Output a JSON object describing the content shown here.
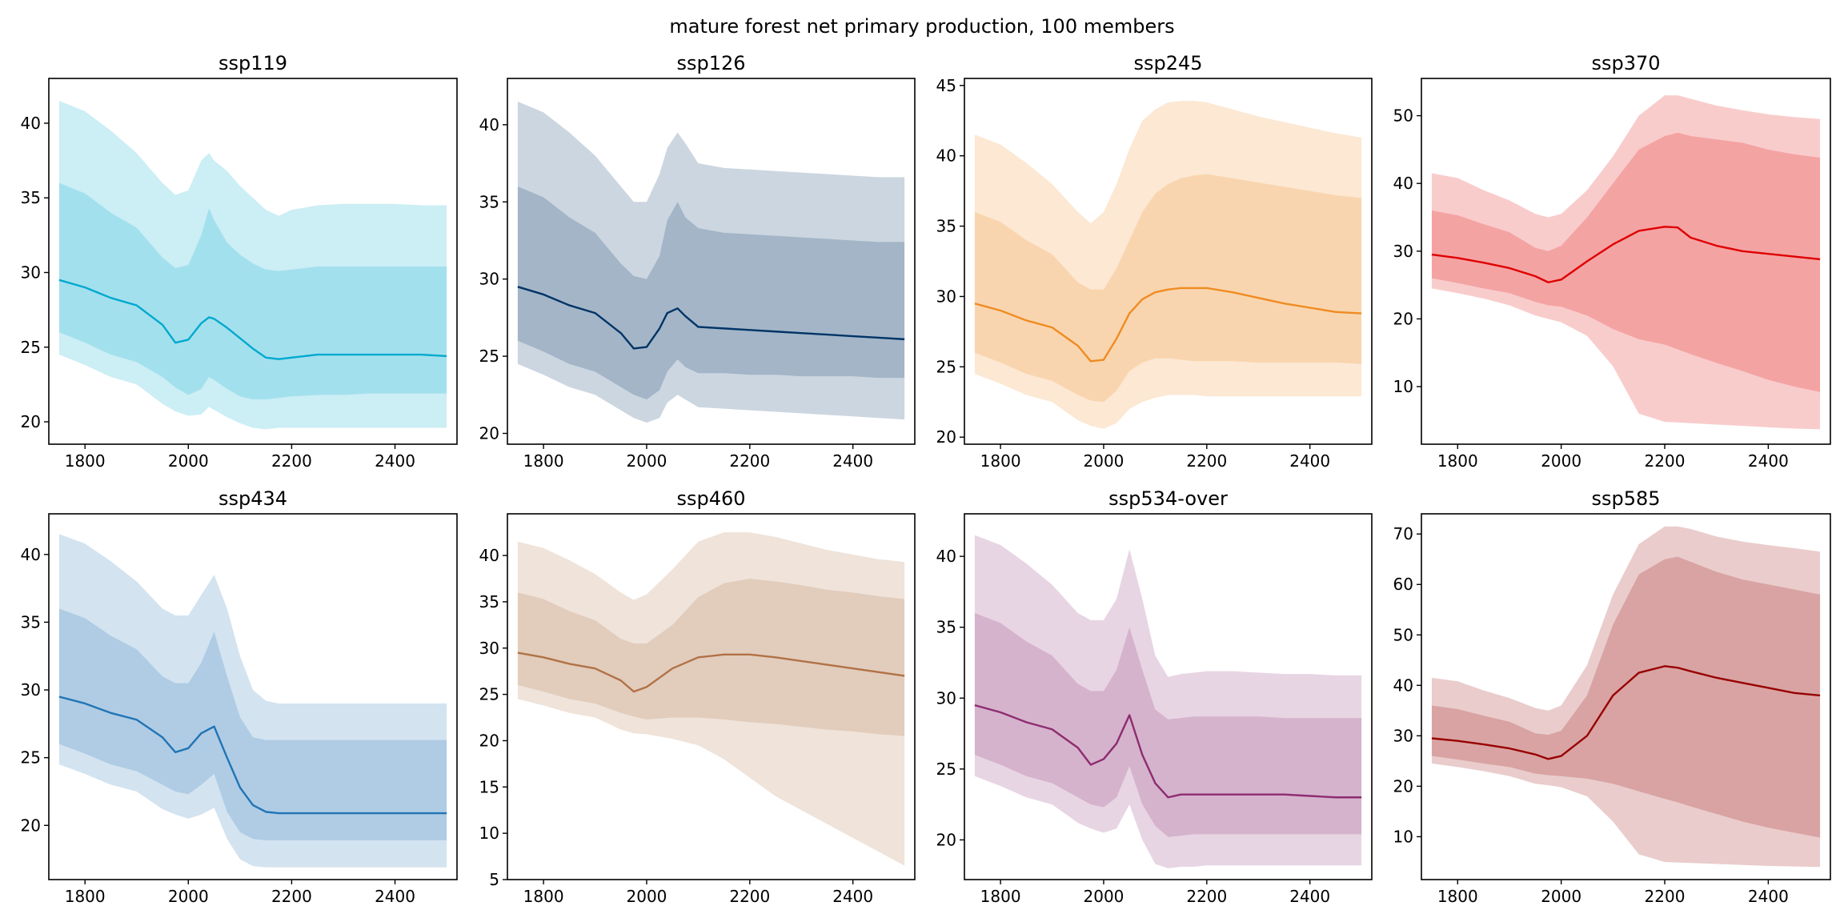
{
  "figure": {
    "suptitle": "mature forest net primary production, 100 members"
  },
  "chart_data": [
    {
      "type": "area",
      "title": "ssp119",
      "color": "#00a9cf",
      "xlim": [
        1730,
        2520
      ],
      "ylim": [
        18.5,
        43
      ],
      "xticks": [
        1800,
        2000,
        2200,
        2400
      ],
      "yticks": [
        20,
        25,
        30,
        35,
        40
      ],
      "x": [
        1750,
        1800,
        1850,
        1900,
        1950,
        1975,
        2000,
        2025,
        2040,
        2050,
        2075,
        2100,
        2125,
        2150,
        2175,
        2200,
        2250,
        2300,
        2350,
        2400,
        2450,
        2500
      ],
      "bands": {
        "outer_upper": [
          41.5,
          40.8,
          39.5,
          38.0,
          36.0,
          35.2,
          35.5,
          37.5,
          38.0,
          37.5,
          36.8,
          35.8,
          35.0,
          34.2,
          33.8,
          34.2,
          34.5,
          34.6,
          34.6,
          34.6,
          34.5,
          34.5
        ],
        "inner_upper": [
          36.0,
          35.3,
          34.0,
          33.0,
          31.0,
          30.3,
          30.5,
          32.5,
          34.3,
          33.5,
          32.0,
          31.2,
          30.6,
          30.2,
          30.1,
          30.2,
          30.4,
          30.4,
          30.4,
          30.4,
          30.4,
          30.4
        ],
        "median": [
          29.5,
          29.0,
          28.3,
          27.8,
          26.5,
          25.3,
          25.5,
          26.6,
          27.0,
          26.9,
          26.3,
          25.6,
          24.9,
          24.3,
          24.2,
          24.3,
          24.5,
          24.5,
          24.5,
          24.5,
          24.5,
          24.4
        ],
        "inner_lower": [
          26.0,
          25.3,
          24.5,
          24.0,
          23.0,
          22.3,
          21.8,
          22.2,
          23.0,
          22.8,
          22.2,
          21.7,
          21.5,
          21.5,
          21.6,
          21.7,
          21.8,
          21.8,
          21.9,
          21.9,
          21.9,
          21.9
        ],
        "outer_lower": [
          24.5,
          23.8,
          23.0,
          22.5,
          21.2,
          20.7,
          20.4,
          20.5,
          21.0,
          20.8,
          20.3,
          19.9,
          19.6,
          19.5,
          19.6,
          19.6,
          19.6,
          19.6,
          19.6,
          19.6,
          19.6,
          19.6
        ]
      }
    },
    {
      "type": "area",
      "title": "ssp126",
      "color": "#003466",
      "xlim": [
        1730,
        2520
      ],
      "ylim": [
        19.3,
        43
      ],
      "xticks": [
        1800,
        2000,
        2200,
        2400
      ],
      "yticks": [
        20,
        25,
        30,
        35,
        40
      ],
      "x": [
        1750,
        1800,
        1850,
        1900,
        1950,
        1975,
        2000,
        2025,
        2040,
        2060,
        2075,
        2100,
        2150,
        2200,
        2250,
        2300,
        2350,
        2400,
        2450,
        2500
      ],
      "bands": {
        "outer_upper": [
          41.5,
          40.8,
          39.5,
          38.0,
          36.0,
          35.0,
          35.0,
          36.8,
          38.5,
          39.5,
          38.8,
          37.5,
          37.2,
          37.1,
          37.0,
          36.9,
          36.8,
          36.7,
          36.6,
          36.6
        ],
        "inner_upper": [
          36.0,
          35.3,
          34.0,
          33.0,
          31.0,
          30.2,
          30.0,
          31.5,
          33.8,
          35.0,
          34.0,
          33.3,
          33.0,
          32.9,
          32.8,
          32.7,
          32.6,
          32.5,
          32.4,
          32.4
        ],
        "median": [
          29.5,
          29.0,
          28.3,
          27.8,
          26.5,
          25.5,
          25.6,
          26.8,
          27.8,
          28.1,
          27.6,
          26.9,
          26.8,
          26.7,
          26.6,
          26.5,
          26.4,
          26.3,
          26.2,
          26.1
        ],
        "inner_lower": [
          26.0,
          25.3,
          24.5,
          24.0,
          23.0,
          22.5,
          22.2,
          22.8,
          24.0,
          24.8,
          24.3,
          23.9,
          23.9,
          23.8,
          23.8,
          23.7,
          23.7,
          23.7,
          23.6,
          23.6
        ],
        "outer_lower": [
          24.5,
          23.8,
          23.0,
          22.5,
          21.5,
          21.0,
          20.7,
          21.0,
          22.0,
          22.5,
          22.2,
          21.7,
          21.6,
          21.5,
          21.4,
          21.3,
          21.2,
          21.1,
          21.0,
          20.9
        ]
      }
    },
    {
      "type": "area",
      "title": "ssp245",
      "color": "#ef8c22",
      "xlim": [
        1730,
        2520
      ],
      "ylim": [
        19.5,
        45.5
      ],
      "xticks": [
        1800,
        2000,
        2200,
        2400
      ],
      "yticks": [
        20,
        25,
        30,
        35,
        40,
        45
      ],
      "x": [
        1750,
        1800,
        1850,
        1900,
        1950,
        1975,
        2000,
        2025,
        2050,
        2075,
        2100,
        2125,
        2150,
        2175,
        2200,
        2250,
        2300,
        2350,
        2400,
        2450,
        2500
      ],
      "bands": {
        "outer_upper": [
          41.5,
          40.8,
          39.5,
          38.0,
          36.0,
          35.2,
          36.0,
          38.0,
          40.5,
          42.5,
          43.3,
          43.8,
          43.9,
          43.9,
          43.8,
          43.3,
          42.8,
          42.4,
          42.0,
          41.6,
          41.3
        ],
        "inner_upper": [
          36.0,
          35.3,
          34.0,
          33.0,
          31.0,
          30.5,
          30.5,
          32.0,
          34.0,
          36.0,
          37.3,
          38.0,
          38.4,
          38.6,
          38.7,
          38.4,
          38.1,
          37.8,
          37.5,
          37.2,
          37.0
        ],
        "median": [
          29.5,
          29.0,
          28.3,
          27.8,
          26.5,
          25.4,
          25.5,
          27.0,
          28.8,
          29.8,
          30.3,
          30.5,
          30.6,
          30.6,
          30.6,
          30.3,
          29.9,
          29.5,
          29.2,
          28.9,
          28.8
        ],
        "inner_lower": [
          26.0,
          25.3,
          24.5,
          24.0,
          23.0,
          22.6,
          22.5,
          23.3,
          24.7,
          25.3,
          25.6,
          25.6,
          25.5,
          25.4,
          25.4,
          25.4,
          25.3,
          25.3,
          25.3,
          25.3,
          25.2
        ],
        "outer_lower": [
          24.5,
          23.8,
          23.0,
          22.5,
          21.2,
          20.8,
          20.6,
          21.0,
          22.0,
          22.5,
          22.8,
          23.0,
          23.0,
          23.0,
          22.9,
          22.9,
          22.9,
          22.9,
          22.9,
          22.9,
          22.9
        ]
      }
    },
    {
      "type": "area",
      "title": "ssp370",
      "color": "#df0000",
      "xlim": [
        1730,
        2520
      ],
      "ylim": [
        1.5,
        55.5
      ],
      "xticks": [
        1800,
        2000,
        2200,
        2400
      ],
      "yticks": [
        10,
        20,
        30,
        40,
        50
      ],
      "x": [
        1750,
        1800,
        1850,
        1900,
        1950,
        1975,
        2000,
        2050,
        2100,
        2150,
        2200,
        2225,
        2250,
        2300,
        2350,
        2400,
        2450,
        2500
      ],
      "bands": {
        "outer_upper": [
          41.5,
          40.8,
          39.0,
          37.5,
          35.5,
          35.0,
          35.5,
          39.0,
          44.0,
          50.0,
          53.0,
          53.0,
          52.5,
          51.5,
          50.8,
          50.2,
          49.8,
          49.5
        ],
        "inner_upper": [
          36.0,
          35.3,
          34.0,
          32.8,
          30.5,
          30.0,
          30.8,
          35.0,
          40.0,
          45.0,
          47.0,
          47.5,
          47.0,
          46.5,
          46.0,
          45.0,
          44.3,
          43.8
        ],
        "median": [
          29.5,
          29.0,
          28.3,
          27.5,
          26.3,
          25.4,
          25.8,
          28.5,
          31.0,
          33.0,
          33.6,
          33.5,
          32.0,
          30.8,
          30.0,
          29.6,
          29.2,
          28.8
        ],
        "inner_lower": [
          26.0,
          25.3,
          24.5,
          23.8,
          22.5,
          22.0,
          21.8,
          20.5,
          18.5,
          17.0,
          16.2,
          15.5,
          14.8,
          13.5,
          12.3,
          11.0,
          10.0,
          9.2
        ],
        "outer_lower": [
          24.5,
          23.8,
          23.0,
          22.0,
          20.5,
          20.0,
          19.5,
          17.5,
          13.0,
          6.0,
          4.8,
          4.7,
          4.6,
          4.4,
          4.2,
          4.0,
          3.8,
          3.7
        ]
      }
    },
    {
      "type": "area",
      "title": "ssp434",
      "color": "#2174b5",
      "xlim": [
        1730,
        2520
      ],
      "ylim": [
        16,
        43
      ],
      "xticks": [
        1800,
        2000,
        2200,
        2400
      ],
      "yticks": [
        20,
        25,
        30,
        35,
        40
      ],
      "x": [
        1750,
        1800,
        1850,
        1900,
        1950,
        1975,
        2000,
        2025,
        2050,
        2075,
        2100,
        2125,
        2150,
        2175,
        2200,
        2250,
        2300,
        2350,
        2400,
        2450,
        2500
      ],
      "bands": {
        "outer_upper": [
          41.5,
          40.8,
          39.5,
          38.0,
          36.0,
          35.5,
          35.5,
          37.0,
          38.5,
          36.0,
          32.5,
          30.0,
          29.2,
          29.0,
          29.0,
          29.0,
          29.0,
          29.0,
          29.0,
          29.0,
          29.0
        ],
        "inner_upper": [
          36.0,
          35.3,
          34.0,
          33.0,
          31.0,
          30.5,
          30.5,
          32.0,
          34.3,
          31.0,
          28.0,
          26.5,
          26.3,
          26.3,
          26.3,
          26.3,
          26.3,
          26.3,
          26.3,
          26.3,
          26.3
        ],
        "median": [
          29.5,
          29.0,
          28.3,
          27.8,
          26.5,
          25.4,
          25.7,
          26.8,
          27.3,
          25.0,
          22.8,
          21.5,
          21.0,
          20.9,
          20.9,
          20.9,
          20.9,
          20.9,
          20.9,
          20.9,
          20.9
        ],
        "inner_lower": [
          26.0,
          25.3,
          24.5,
          24.0,
          23.0,
          22.5,
          22.3,
          23.0,
          23.8,
          21.0,
          19.5,
          19.0,
          18.9,
          18.9,
          18.9,
          18.9,
          18.9,
          18.9,
          18.9,
          18.9,
          18.9
        ],
        "outer_lower": [
          24.5,
          23.8,
          23.0,
          22.5,
          21.2,
          20.8,
          20.5,
          20.8,
          21.3,
          19.0,
          17.5,
          17.0,
          16.9,
          16.9,
          16.9,
          16.9,
          16.9,
          16.9,
          16.9,
          16.9,
          16.9
        ]
      }
    },
    {
      "type": "area",
      "title": "ssp460",
      "color": "#b17246",
      "xlim": [
        1730,
        2520
      ],
      "ylim": [
        5,
        44.5
      ],
      "xticks": [
        1800,
        2000,
        2200,
        2400
      ],
      "yticks": [
        5,
        10,
        15,
        20,
        25,
        30,
        35,
        40
      ],
      "x": [
        1750,
        1800,
        1850,
        1900,
        1950,
        1975,
        2000,
        2050,
        2100,
        2150,
        2200,
        2250,
        2300,
        2350,
        2400,
        2450,
        2500
      ],
      "bands": {
        "outer_upper": [
          41.5,
          40.8,
          39.5,
          38.0,
          36.0,
          35.2,
          35.8,
          38.5,
          41.5,
          42.5,
          42.5,
          42.0,
          41.3,
          40.6,
          40.1,
          39.6,
          39.3
        ],
        "inner_upper": [
          36.0,
          35.3,
          34.0,
          33.0,
          31.0,
          30.5,
          30.5,
          32.5,
          35.5,
          37.0,
          37.5,
          37.2,
          36.8,
          36.3,
          36.0,
          35.6,
          35.3
        ],
        "median": [
          29.5,
          29.0,
          28.3,
          27.8,
          26.5,
          25.3,
          25.8,
          27.8,
          29.0,
          29.3,
          29.3,
          29.0,
          28.6,
          28.2,
          27.8,
          27.4,
          27.0
        ],
        "inner_lower": [
          26.0,
          25.3,
          24.5,
          24.0,
          23.0,
          22.6,
          22.3,
          22.5,
          22.5,
          22.3,
          22.0,
          21.8,
          21.5,
          21.2,
          21.0,
          20.7,
          20.5
        ],
        "outer_lower": [
          24.5,
          23.8,
          23.0,
          22.5,
          21.2,
          20.8,
          20.7,
          20.2,
          19.5,
          18.0,
          16.0,
          14.0,
          12.5,
          11.0,
          9.5,
          8.0,
          6.5
        ]
      }
    },
    {
      "type": "area",
      "title": "ssp534-over",
      "color": "#8e2c71",
      "xlim": [
        1730,
        2520
      ],
      "ylim": [
        17.2,
        43
      ],
      "xticks": [
        1800,
        2000,
        2200,
        2400
      ],
      "yticks": [
        20,
        25,
        30,
        35,
        40
      ],
      "x": [
        1750,
        1800,
        1850,
        1900,
        1950,
        1975,
        2000,
        2025,
        2050,
        2075,
        2100,
        2125,
        2150,
        2175,
        2200,
        2250,
        2300,
        2350,
        2400,
        2450,
        2500
      ],
      "bands": {
        "outer_upper": [
          41.5,
          40.8,
          39.5,
          38.0,
          36.0,
          35.5,
          35.5,
          37.0,
          40.5,
          37.0,
          33.0,
          31.5,
          31.7,
          31.8,
          31.9,
          31.9,
          31.8,
          31.7,
          31.7,
          31.6,
          31.6
        ],
        "inner_upper": [
          36.0,
          35.3,
          34.0,
          33.0,
          31.0,
          30.5,
          30.5,
          32.0,
          35.0,
          32.0,
          29.2,
          28.5,
          28.6,
          28.7,
          28.7,
          28.7,
          28.7,
          28.6,
          28.6,
          28.6,
          28.6
        ],
        "median": [
          29.5,
          29.0,
          28.3,
          27.8,
          26.5,
          25.3,
          25.7,
          26.8,
          28.8,
          26.0,
          24.0,
          23.0,
          23.2,
          23.2,
          23.2,
          23.2,
          23.2,
          23.2,
          23.1,
          23.0,
          23.0
        ],
        "inner_lower": [
          26.0,
          25.3,
          24.5,
          24.0,
          23.0,
          22.5,
          22.3,
          23.0,
          25.2,
          22.5,
          21.0,
          20.2,
          20.3,
          20.4,
          20.4,
          20.4,
          20.4,
          20.4,
          20.4,
          20.4,
          20.4
        ],
        "outer_lower": [
          24.5,
          23.8,
          23.0,
          22.5,
          21.2,
          20.8,
          20.5,
          20.8,
          22.5,
          20.0,
          18.3,
          18.0,
          18.1,
          18.1,
          18.2,
          18.2,
          18.2,
          18.2,
          18.2,
          18.2,
          18.2
        ]
      }
    },
    {
      "type": "area",
      "title": "ssp585",
      "color": "#980002",
      "xlim": [
        1730,
        2520
      ],
      "ylim": [
        1.5,
        74
      ],
      "xticks": [
        1800,
        2000,
        2200,
        2400
      ],
      "yticks": [
        10,
        20,
        30,
        40,
        50,
        60,
        70
      ],
      "x": [
        1750,
        1800,
        1850,
        1900,
        1950,
        1975,
        2000,
        2050,
        2100,
        2150,
        2200,
        2225,
        2250,
        2300,
        2350,
        2400,
        2450,
        2500
      ],
      "bands": {
        "outer_upper": [
          41.5,
          40.8,
          39.0,
          37.5,
          35.5,
          35.0,
          36.0,
          44.0,
          58.0,
          68.0,
          71.5,
          71.5,
          71.0,
          69.5,
          68.5,
          67.8,
          67.2,
          66.5
        ],
        "inner_upper": [
          36.0,
          35.3,
          34.0,
          32.8,
          30.5,
          30.2,
          31.0,
          38.0,
          52.0,
          62.0,
          65.0,
          65.5,
          64.5,
          62.5,
          61.0,
          60.0,
          59.0,
          58.0
        ],
        "median": [
          29.5,
          29.0,
          28.3,
          27.5,
          26.3,
          25.4,
          26.0,
          30.0,
          38.0,
          42.5,
          43.8,
          43.5,
          42.8,
          41.5,
          40.5,
          39.5,
          38.5,
          38.0
        ],
        "inner_lower": [
          26.0,
          25.3,
          24.5,
          23.8,
          22.5,
          22.2,
          22.0,
          21.5,
          20.5,
          19.0,
          17.5,
          16.8,
          16.0,
          14.5,
          13.0,
          11.8,
          10.8,
          9.8
        ],
        "outer_lower": [
          24.5,
          23.8,
          23.0,
          22.0,
          20.5,
          20.2,
          19.8,
          18.0,
          13.0,
          6.5,
          5.0,
          4.9,
          4.8,
          4.6,
          4.4,
          4.2,
          4.1,
          4.0
        ]
      }
    }
  ]
}
